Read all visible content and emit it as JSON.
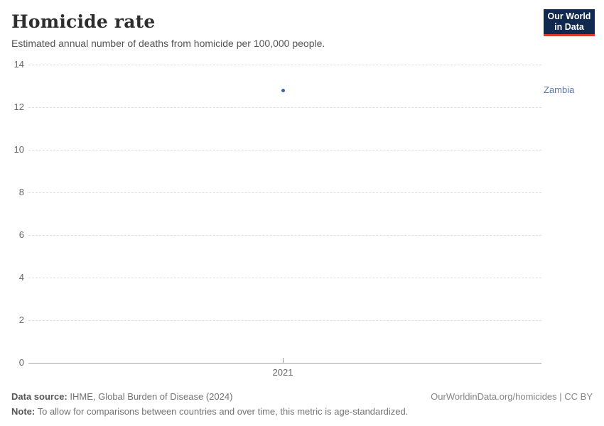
{
  "header": {
    "title": "Homicide rate",
    "subtitle": "Estimated annual number of deaths from homicide per 100,000 people.",
    "logo": {
      "line1": "Our World",
      "line2": "in Data",
      "bg_color": "#12294f",
      "accent_color": "#e0362c"
    }
  },
  "chart_data": {
    "type": "scatter",
    "title": "Homicide rate",
    "subtitle": "Estimated annual number of deaths from homicide per 100,000 people.",
    "xlabel": "",
    "ylabel": "",
    "ylim": [
      0,
      14
    ],
    "yticks": [
      0,
      2,
      4,
      6,
      8,
      10,
      12,
      14
    ],
    "xticks": [
      "2021"
    ],
    "grid": true,
    "legend_position": "right",
    "series": [
      {
        "name": "Zambia",
        "x": [
          2021
        ],
        "values": [
          12.8
        ],
        "point_color": "#3d62a8",
        "label_color": "#5878ab"
      }
    ]
  },
  "footer": {
    "data_source_label": "Data source:",
    "data_source_text": " IHME, Global Burden of Disease (2024)",
    "note_label": "Note:",
    "note_text": " To allow for comparisons between countries and over time, this metric is age-standardized.",
    "link": "OurWorldinData.org/homicides | CC BY"
  }
}
